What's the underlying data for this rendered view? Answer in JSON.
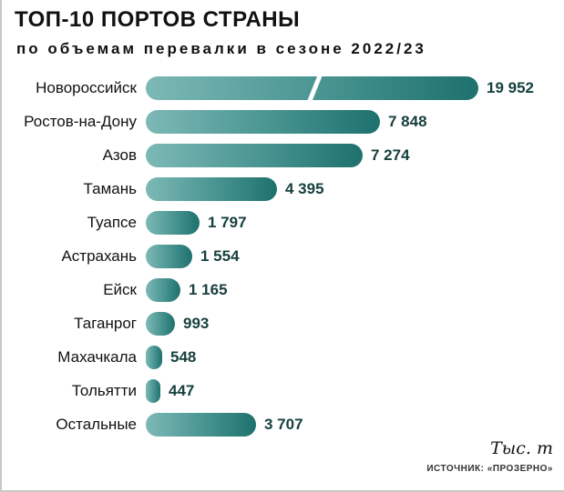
{
  "header": {
    "title": "ТОП-10 ПОРТОВ СТРАНЫ",
    "subtitle": "по объемам перевалки в сезоне 2022/23"
  },
  "footer": {
    "unit": "Тыс. т",
    "source": "ИСТОЧНИК: «ПРОЗЕРНО»"
  },
  "colors": {
    "bar_gradient_start": "#7db9b6",
    "bar_gradient_end": "#1e716e",
    "text": "#111111",
    "value_text": "#17403e",
    "frame_border": "#c8c8c8"
  },
  "chart_data": {
    "type": "bar",
    "orientation": "horizontal",
    "title": "ТОП-10 ПОРТОВ СТРАНЫ",
    "subtitle": "по объемам перевалки в сезоне 2022/23",
    "unit": "Тыс. т",
    "source": "ИСТОЧНИК: «ПРОЗЕРНО»",
    "categories": [
      "Новороссийск",
      "Ростов-на-Дону",
      "Азов",
      "Тамань",
      "Туапсе",
      "Астрахань",
      "Ейск",
      "Таганрог",
      "Махачкала",
      "Тольятти",
      "Остальные"
    ],
    "values": [
      19952,
      7848,
      7274,
      4395,
      1797,
      1554,
      1165,
      993,
      548,
      447,
      3707
    ],
    "values_display": [
      "19 952",
      "7 848",
      "7 274",
      "4 395",
      "1 797",
      "1 554",
      "1 165",
      "993",
      "548",
      "447",
      "3 707"
    ],
    "truncated_bar_index": 0,
    "grid": false,
    "legend": false,
    "xlim": [
      0,
      20000
    ]
  }
}
